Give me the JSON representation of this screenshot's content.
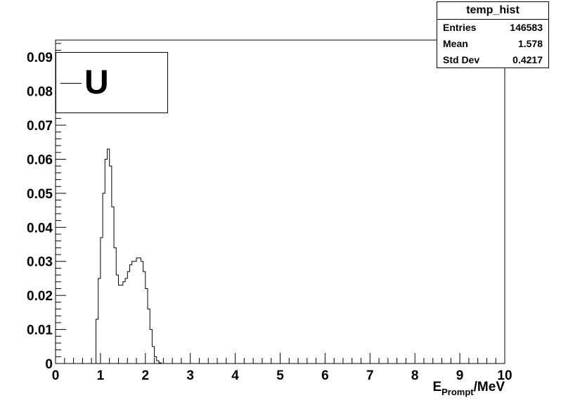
{
  "stats": {
    "title": "temp_hist",
    "rows": [
      {
        "label": "Entries",
        "value": "146583"
      },
      {
        "label": "Mean",
        "value": "1.578"
      },
      {
        "label": "Std Dev",
        "value": "0.4217"
      }
    ]
  },
  "legend": {
    "label": "U"
  },
  "xaxis": {
    "label_main": "E",
    "label_sub": "Prompt",
    "label_unit": "/MeV"
  },
  "chart_data": {
    "type": "bar",
    "style": "step-histogram",
    "xlim": [
      0,
      10
    ],
    "ylim": [
      0,
      0.095
    ],
    "bin_width": 0.05,
    "xticks": [
      "0",
      "1",
      "2",
      "3",
      "4",
      "5",
      "6",
      "7",
      "8",
      "9",
      "10"
    ],
    "yticks": [
      "0",
      "0.01",
      "0.02",
      "0.03",
      "0.04",
      "0.05",
      "0.06",
      "0.07",
      "0.08",
      "0.09"
    ],
    "bin_start": 0.9,
    "values": [
      0.013,
      0.025,
      0.037,
      0.05,
      0.06,
      0.063,
      0.058,
      0.046,
      0.034,
      0.026,
      0.023,
      0.023,
      0.024,
      0.025,
      0.027,
      0.029,
      0.03,
      0.03,
      0.031,
      0.031,
      0.03,
      0.027,
      0.022,
      0.016,
      0.01,
      0.005,
      0.002,
      0.0008,
      0.0002
    ]
  }
}
